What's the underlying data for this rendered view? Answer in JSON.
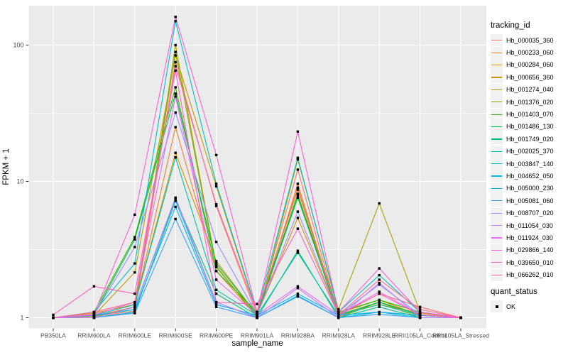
{
  "chart_data": {
    "type": "line",
    "title": "",
    "xlabel": "sample_name",
    "ylabel": "FPKM + 1",
    "scale_y": "log10",
    "grid": "on",
    "legend_position": "right",
    "legend_title": "tracking_id",
    "quant_legend": {
      "title": "quant_status",
      "items": [
        "OK"
      ]
    },
    "categories": [
      "PB350LA",
      "RRIM600LA",
      "RRIM600LE",
      "RRIM600SE",
      "RRIM600PE",
      "RRIM901LA",
      "RRIM928BA",
      "RRIM928LA",
      "RRIM928LE",
      "RRII105LA_Control",
      "RRII105LA_Stressed"
    ],
    "y_ticks": [
      {
        "v": 100,
        "label": "100"
      },
      {
        "v": 10,
        "label": "10"
      },
      {
        "v": 1,
        "label": "1"
      }
    ],
    "y_minor": [
      3.1623,
      31.623
    ],
    "ylim_display": [
      0.83,
      193
    ],
    "point_color": "#000000",
    "series": [
      {
        "name": "Hb_000035_360",
        "color": "#F8766D",
        "values": [
          1.0,
          1.02,
          1.12,
          75,
          6.6,
          1.04,
          12.2,
          1.04,
          1.5,
          1.2,
          1.0
        ]
      },
      {
        "name": "Hb_000233_060",
        "color": "#EA8331",
        "values": [
          1.0,
          1.03,
          1.2,
          25,
          2.2,
          1.02,
          9.6,
          1.02,
          1.3,
          1.05,
          1.0
        ]
      },
      {
        "name": "Hb_000284_060",
        "color": "#D89000",
        "values": [
          1.0,
          1.08,
          1.25,
          16.2,
          2.6,
          1.05,
          5.4,
          1.05,
          1.25,
          1.08,
          1.0
        ]
      },
      {
        "name": "Hb_000656_360",
        "color": "#C09B00",
        "values": [
          1.0,
          1.04,
          2.15,
          84,
          9.2,
          1.08,
          9.0,
          1.08,
          1.35,
          1.04,
          1.0
        ]
      },
      {
        "name": "Hb_001274_040",
        "color": "#A3A500",
        "values": [
          1.0,
          1.0,
          1.1,
          100,
          2.4,
          1.0,
          14.5,
          1.15,
          6.9,
          1.1,
          1.0
        ]
      },
      {
        "name": "Hb_001376_020",
        "color": "#7CAE00",
        "values": [
          1.0,
          1.03,
          1.15,
          89,
          2.35,
          1.03,
          8.1,
          1.0,
          1.3,
          1.0,
          1.0
        ]
      },
      {
        "name": "Hb_001403_070",
        "color": "#39B600",
        "values": [
          1.0,
          1.1,
          3.9,
          49,
          2.2,
          1.1,
          7.9,
          1.1,
          1.35,
          1.1,
          1.0
        ]
      },
      {
        "name": "Hb_001486_130",
        "color": "#00BB4E",
        "values": [
          1.0,
          1.05,
          3.75,
          44,
          2.5,
          1.05,
          7.6,
          1.05,
          1.3,
          1.05,
          1.0
        ]
      },
      {
        "name": "Hb_001749_020",
        "color": "#00BF7D",
        "values": [
          1.0,
          1.0,
          1.2,
          7.4,
          1.5,
          1.0,
          3.1,
          1.0,
          1.2,
          1.0,
          1.0
        ]
      },
      {
        "name": "Hb_002025_370",
        "color": "#00C1A3",
        "values": [
          1.0,
          1.04,
          1.25,
          15.0,
          1.6,
          1.04,
          3.0,
          1.04,
          1.25,
          1.04,
          1.0
        ]
      },
      {
        "name": "Hb_003847_140",
        "color": "#00BFC4",
        "values": [
          1.0,
          1.1,
          2.5,
          150,
          9.6,
          1.1,
          14.9,
          1.1,
          2.05,
          1.1,
          1.0
        ]
      },
      {
        "name": "Hb_004652_050",
        "color": "#00BAE0",
        "values": [
          1.0,
          1.0,
          1.1,
          7.2,
          1.3,
          1.0,
          1.45,
          1.0,
          1.1,
          1.0,
          1.0
        ]
      },
      {
        "name": "Hb_005000_230",
        "color": "#00B0F6",
        "values": [
          1.0,
          1.04,
          1.15,
          6.5,
          1.25,
          1.04,
          1.5,
          1.04,
          1.1,
          1.04,
          1.0
        ]
      },
      {
        "name": "Hb_005081_060",
        "color": "#35A2FF",
        "values": [
          1.0,
          1.0,
          1.08,
          5.3,
          1.2,
          1.0,
          1.43,
          1.0,
          1.06,
          1.0,
          1.0
        ]
      },
      {
        "name": "Hb_008707_020",
        "color": "#9590FF",
        "values": [
          1.0,
          1.05,
          3.3,
          32,
          3.6,
          1.05,
          6.0,
          1.05,
          1.75,
          1.05,
          1.0
        ]
      },
      {
        "name": "Hb_011054_030",
        "color": "#C77CFF",
        "values": [
          1.0,
          1.0,
          1.2,
          7.6,
          1.3,
          1.0,
          1.65,
          1.0,
          1.8,
          1.0,
          1.0
        ]
      },
      {
        "name": "Hb_011924_030",
        "color": "#E76BF3",
        "values": [
          1.0,
          1.05,
          1.3,
          42,
          1.9,
          1.05,
          1.7,
          1.05,
          1.55,
          1.05,
          1.0
        ]
      },
      {
        "name": "Hb_029866_140",
        "color": "#FA62DB",
        "values": [
          1.0,
          1.06,
          5.7,
          161,
          15.6,
          1.1,
          23.2,
          1.1,
          2.3,
          1.1,
          1.0
        ]
      },
      {
        "name": "Hb_039650_010",
        "color": "#FF62BC",
        "values": [
          1.05,
          1.7,
          1.5,
          65,
          1.3,
          1.26,
          4.5,
          1.05,
          1.5,
          1.05,
          1.0
        ]
      },
      {
        "name": "Hb_066262_010",
        "color": "#FF6A98",
        "values": [
          1.0,
          1.1,
          1.3,
          70,
          6.8,
          1.1,
          8.7,
          1.05,
          1.9,
          1.15,
          1.0
        ]
      }
    ],
    "panel_bg": "#EBEBEB",
    "grid_color": "#FFFFFF",
    "tick_text_color": "#4D4D4D",
    "tick_mark_color": "#333333"
  }
}
